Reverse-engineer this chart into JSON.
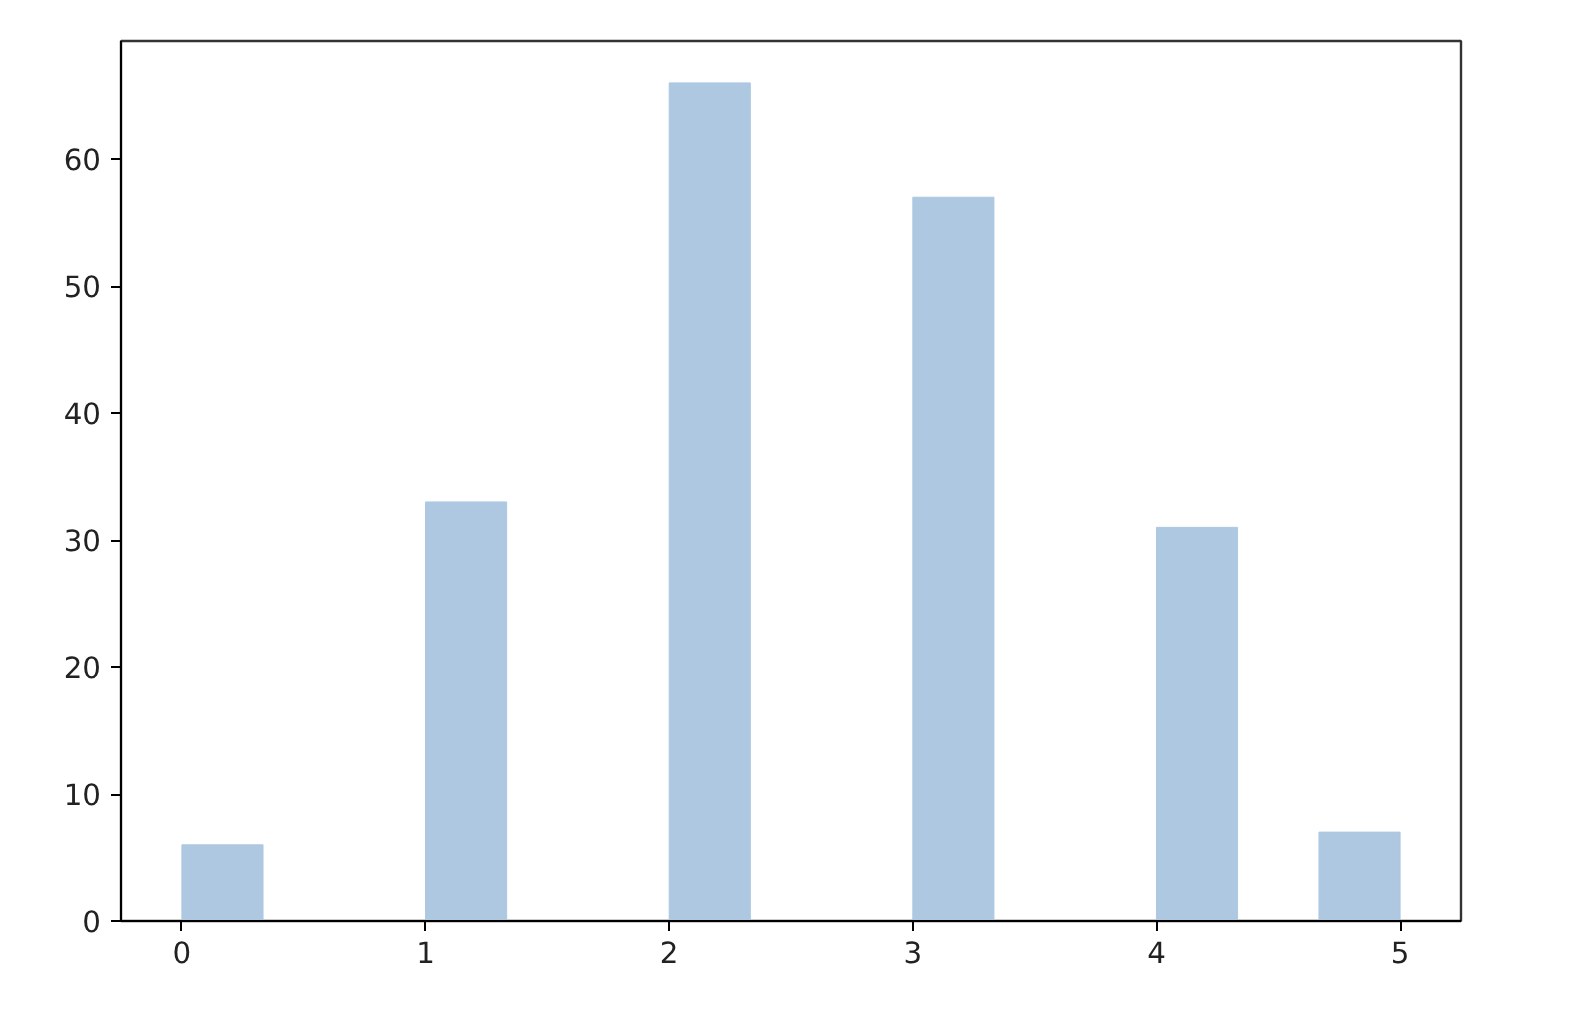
{
  "chart_data": {
    "type": "histogram",
    "bins": [
      0,
      0.333,
      0.667,
      1,
      1.333,
      1.667,
      2,
      2.333,
      2.667,
      3,
      3.333,
      3.667,
      4,
      4.333,
      4.667,
      5
    ],
    "values": [
      6,
      0,
      0,
      33,
      0,
      0,
      66,
      0,
      0,
      57,
      0,
      0,
      31,
      0,
      7
    ],
    "color": "#adc8e0",
    "xlim": [
      -0.25,
      5.25
    ],
    "ylim": [
      0,
      69.3
    ],
    "xticks": [
      0,
      1,
      2,
      3,
      4,
      5
    ],
    "yticks": [
      0,
      10,
      20,
      30,
      40,
      50,
      60
    ],
    "grid": false
  }
}
